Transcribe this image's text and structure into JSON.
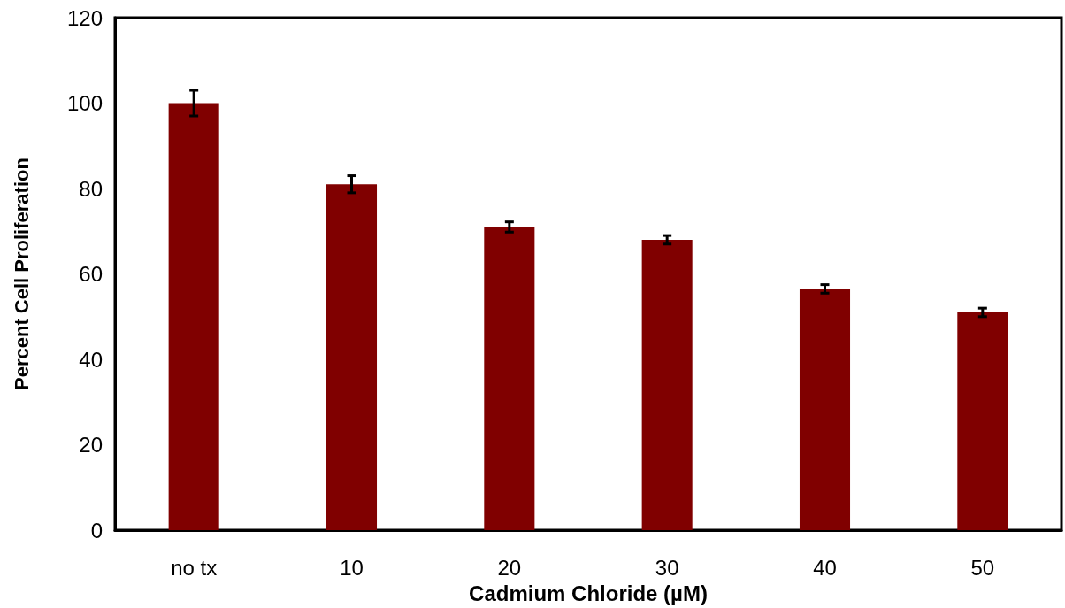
{
  "chart_data": {
    "type": "bar",
    "xlabel": "Cadmium Chloride (µM)",
    "ylabel": "Percent Cell Proliferation",
    "categories": [
      "no tx",
      "10",
      "20",
      "30",
      "40",
      "50"
    ],
    "values": [
      100,
      81,
      71,
      68,
      56.5,
      51
    ],
    "errors": [
      3,
      2,
      1.2,
      1,
      1,
      1
    ],
    "color": "#800000",
    "ylim": [
      0,
      120
    ],
    "yticks": [
      0,
      20,
      40,
      60,
      80,
      100,
      120
    ],
    "grid": false
  }
}
